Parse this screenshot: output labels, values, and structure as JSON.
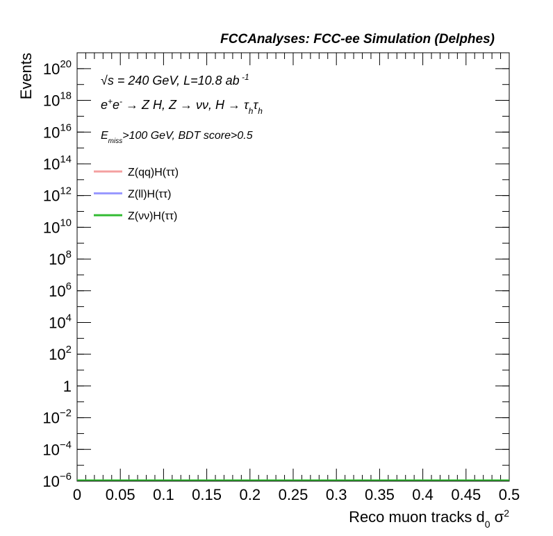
{
  "chart_data": {
    "type": "histogram",
    "title": "FCCAnalyses: FCC-ee Simulation (Delphes)",
    "ylabel": "Events",
    "xlabel": [
      {
        "text": "Reco muon tracks d"
      },
      {
        "text": "0",
        "shift": "sub"
      },
      {
        "text": " σ"
      },
      {
        "text": "2",
        "shift": "super"
      }
    ],
    "annotations": [
      [
        {
          "text": "√s = 240 GeV, L=10.8 ab"
        },
        {
          "text": " -1",
          "shift": "super"
        }
      ],
      [
        {
          "text": "e"
        },
        {
          "text": "+",
          "shift": "super"
        },
        {
          "text": "e"
        },
        {
          "text": "-",
          "shift": "super"
        },
        {
          "text": " → Z H, Z  → νν, H → τ"
        },
        {
          "text": "h",
          "shift": "sub"
        },
        {
          "text": "τ"
        },
        {
          "text": "h",
          "shift": "sub"
        }
      ],
      [
        {
          "text": "E"
        },
        {
          "text": "miss",
          "shift": "sub"
        },
        {
          "text": ">100 GeV, BDT score>0.5"
        }
      ]
    ],
    "bins": [
      0,
      0.5
    ],
    "series": [
      {
        "name": "Z(qq)H(ττ)",
        "color": "#f4a0a0",
        "values": [
          0
        ]
      },
      {
        "name": "Z(ll)H(ττ)",
        "color": "#9999ff",
        "values": [
          0
        ]
      },
      {
        "name": "Z(νν)H(ττ)",
        "color": "#33bb33",
        "values": [
          0
        ]
      }
    ],
    "log_y": true,
    "xlim": [
      0,
      0.5
    ],
    "xticks": [
      0,
      0.05,
      0.1,
      0.15,
      0.2,
      0.25,
      0.3,
      0.35,
      0.4,
      0.45,
      0.5
    ],
    "ylim": [
      1e-06,
      1e+21
    ],
    "yticks": [
      {
        "value": 1e-06,
        "label": "10",
        "sup": "−6"
      },
      {
        "value": 0.0001,
        "label": "10",
        "sup": "−4"
      },
      {
        "value": 0.01,
        "label": "10",
        "sup": "−2"
      },
      1,
      {
        "value": 100.0,
        "label": "10",
        "sup": "2"
      },
      {
        "value": 10000.0,
        "label": "10",
        "sup": "4"
      },
      {
        "value": 1000000.0,
        "label": "10",
        "sup": "6"
      },
      {
        "value": 100000000.0,
        "label": "10",
        "sup": "8"
      },
      {
        "value": 10000000000.0,
        "label": "10",
        "sup": "10"
      },
      {
        "value": 1000000000000.0,
        "label": "10",
        "sup": "12"
      },
      {
        "value": 100000000000000.0,
        "label": "10",
        "sup": "14"
      },
      {
        "value": 1e+16,
        "label": "10",
        "sup": "16"
      },
      {
        "value": 1e+18,
        "label": "10",
        "sup": "18"
      },
      {
        "value": 1e+20,
        "label": "10",
        "sup": "20"
      }
    ]
  }
}
